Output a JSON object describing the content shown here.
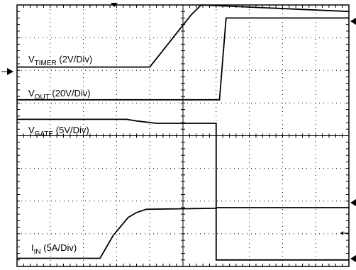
{
  "chart_data": {
    "type": "line",
    "grid": "dotted 10x8 divisions",
    "x_divisions": 10,
    "y_divisions": 8,
    "series": [
      {
        "label": {
          "main": "V",
          "sub": "TIMER",
          "rest": " (2V/Div)"
        },
        "values": [
          [
            0,
            6.1
          ],
          [
            4.0,
            6.1
          ],
          [
            5.25,
            7.7
          ],
          [
            5.55,
            8.0
          ],
          [
            10,
            7.8
          ]
        ]
      },
      {
        "label": {
          "main": "V",
          "sub": "OUT",
          "rest": " (20V/Div)"
        },
        "values": [
          [
            0,
            5.1
          ],
          [
            6.1,
            5.1
          ],
          [
            6.3,
            7.6
          ],
          [
            10,
            7.6
          ]
        ]
      },
      {
        "label": {
          "main": "V",
          "sub": "GATE",
          "rest": " (5V/Div)"
        },
        "values": [
          [
            0,
            4.5
          ],
          [
            3.3,
            4.5
          ],
          [
            3.6,
            4.45
          ],
          [
            4.2,
            4.38
          ],
          [
            6.0,
            4.38
          ],
          [
            6.0,
            0.2
          ],
          [
            10,
            0.2
          ]
        ]
      },
      {
        "label": {
          "main": "I",
          "sub": "IN",
          "rest": " (5A/Div)"
        },
        "values": [
          [
            0,
            0.25
          ],
          [
            2.5,
            0.25
          ],
          [
            2.9,
            0.95
          ],
          [
            3.35,
            1.5
          ],
          [
            3.6,
            1.65
          ],
          [
            3.9,
            1.75
          ],
          [
            6.0,
            1.78
          ],
          [
            6.0,
            1.8
          ],
          [
            6.2,
            1.8
          ],
          [
            10,
            1.8
          ]
        ]
      }
    ]
  }
}
